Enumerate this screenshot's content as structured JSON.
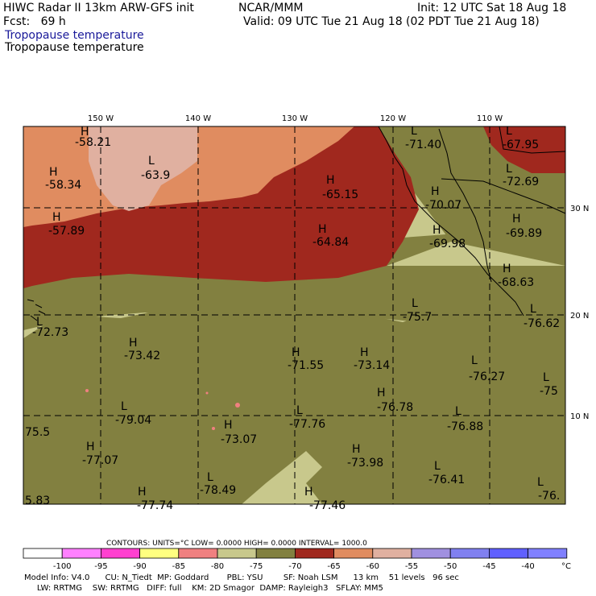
{
  "header": {
    "line1_left": "HIWC Radar II 13km ARW-GFS init",
    "line1_mid": "NCAR/MMM",
    "line1_right": "Init: 12 UTC Sat 18 Aug 18",
    "line2_left": "Fcst:   69 h",
    "line2_right": "Valid: 09 UTC Tue 21 Aug 18 (02 PDT Tue 21 Aug 18)",
    "field_title_1": "Tropopause temperature",
    "field_title_2": "Tropopause temperature"
  },
  "map": {
    "lon_labels": [
      "150 W",
      "140 W",
      "130 W",
      "120 W",
      "110 W"
    ],
    "lat_labels": [
      "30 N",
      "20 N",
      "10 N"
    ],
    "highs": [
      {
        "label": "H",
        "value": "-58.21"
      },
      {
        "label": "H",
        "value": "-58.34"
      },
      {
        "label": "H",
        "value": "-57.89"
      },
      {
        "label": "H",
        "value": "-65.15"
      },
      {
        "label": "H",
        "value": "-64.84"
      },
      {
        "label": "H",
        "value": "-73.42"
      },
      {
        "label": "H",
        "value": "-71.55"
      },
      {
        "label": "H",
        "value": "-73.14"
      },
      {
        "label": "H",
        "value": "-69.89"
      },
      {
        "label": "H",
        "value": "-68.63"
      },
      {
        "label": "H",
        "value": "-70.07"
      },
      {
        "label": "H",
        "value": "-69.98"
      },
      {
        "label": "H",
        "value": "-77.07"
      },
      {
        "label": "H",
        "value": "-73.07"
      },
      {
        "label": "H",
        "value": "-73.98"
      },
      {
        "label": "H",
        "value": "-77.74"
      },
      {
        "label": "H",
        "value": "-77.46"
      },
      {
        "label": "H",
        "value": "-76.78"
      }
    ],
    "lows": [
      {
        "label": "L",
        "value": "-63.9"
      },
      {
        "label": "L",
        "value": "-71.40"
      },
      {
        "label": "L",
        "value": "-67.95"
      },
      {
        "label": "L",
        "value": "-72.69"
      },
      {
        "label": "L",
        "value": "-75.7"
      },
      {
        "label": "L",
        "value": "-76.62"
      },
      {
        "label": "L",
        "value": "-76.27"
      },
      {
        "label": "L",
        "value": "-75"
      },
      {
        "label": "L",
        "value": "-79.04"
      },
      {
        "label": "L",
        "value": "-77.76"
      },
      {
        "label": "L",
        "value": "-76.88"
      },
      {
        "label": "L",
        "value": "-76.41"
      },
      {
        "label": "L",
        "value": "-78.49"
      },
      {
        "label": "L",
        "value": "-76."
      },
      {
        "label": "L",
        "value": "-72.73"
      }
    ],
    "edge_values": [
      "75.5",
      "5.83"
    ]
  },
  "legend": {
    "contours_line": "CONTOURS:  UNITS=°C  LOW=  0.0000        HIGH=  0.0000        INTERVAL=   1000.0",
    "tick_labels": [
      "-100",
      "-95",
      "-90",
      "-85",
      "-80",
      "-75",
      "-70",
      "-65",
      "-60",
      "-55",
      "-50",
      "-45",
      "-40"
    ],
    "unit": "°C",
    "colors": [
      "#ffffff",
      "#ff80ff",
      "#ff40d0",
      "#ffff80",
      "#f08080",
      "#c8c88c",
      "#828040",
      "#a0281e",
      "#e08c60",
      "#e0b0a0",
      "#a090e0",
      "#8080f0",
      "#6060ff",
      "#8080ff"
    ]
  },
  "footer": {
    "line1": "Model Info: V4.0      CU: N_Tiedt  MP: Goddard       PBL: YSU        SF: Noah LSM      13 km    51 levels   96 sec",
    "line2": "     LW: RRTMG    SW: RRTMG   DIFF: full    KM: 2D Smagor  DAMP: Rayleigh3   SFLAY: MM5"
  }
}
